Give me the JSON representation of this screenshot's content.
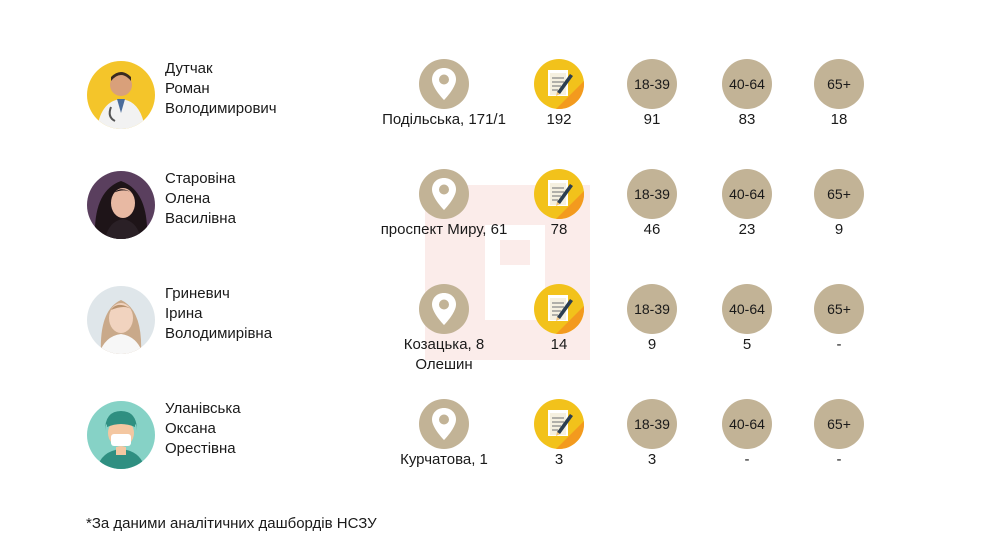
{
  "age_groups": [
    "18-39",
    "40-64",
    "65+"
  ],
  "doctors": [
    {
      "name_lines": [
        "Дутчак",
        "Роман",
        "Володимирович"
      ],
      "address": "Подільська, 171/1",
      "total": "192",
      "age_18_39": "91",
      "age_40_64": "83",
      "age_65": "18",
      "avatar": "doctor-photo-man"
    },
    {
      "name_lines": [
        "Старовіна",
        "Олена",
        "Василівна"
      ],
      "address": "проспект Миру, 61",
      "total": "78",
      "age_18_39": "46",
      "age_40_64": "23",
      "age_65": "9",
      "avatar": "doctor-photo-woman-dark-hair"
    },
    {
      "name_lines": [
        "Гриневич",
        "Ірина",
        "Володимирівна"
      ],
      "address": "Козацька, 8 Олешин",
      "total": "14",
      "age_18_39": "9",
      "age_40_64": "5",
      "age_65": "-",
      "avatar": "doctor-photo-woman-light"
    },
    {
      "name_lines": [
        "Уланівська",
        "Оксана",
        "Орестівна"
      ],
      "address": "Курчатова, 1",
      "total": "3",
      "age_18_39": "3",
      "age_40_64": "-",
      "age_65": "-",
      "avatar": "doctor-placeholder-icon"
    }
  ],
  "footnote": "*За даними аналітичних дашбордів НСЗУ",
  "colors": {
    "circle": "#c2b396",
    "notes_bg": "#f2c21b",
    "notes_accent": "#f39a1e"
  }
}
